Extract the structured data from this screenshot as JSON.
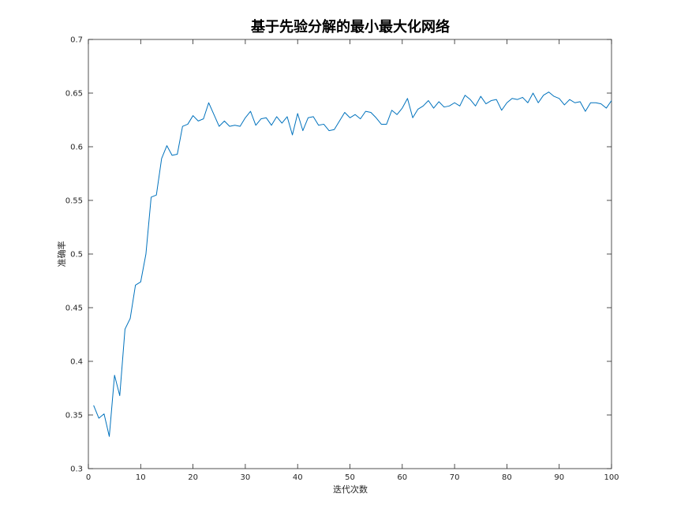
{
  "chart_data": {
    "type": "line",
    "title": "基于先验分解的最小最大化网络",
    "xlabel": "迭代次数",
    "ylabel": "准确率",
    "xlim": [
      0,
      100
    ],
    "ylim": [
      0.3,
      0.7
    ],
    "xticks": [
      0,
      10,
      20,
      30,
      40,
      50,
      60,
      70,
      80,
      90,
      100
    ],
    "yticks": [
      0.3,
      0.35,
      0.4,
      0.45,
      0.5,
      0.55,
      0.6,
      0.65,
      0.7
    ],
    "xtick_labels": [
      "0",
      "10",
      "20",
      "30",
      "40",
      "50",
      "60",
      "70",
      "80",
      "90",
      "100"
    ],
    "ytick_labels": [
      "0.3",
      "0.35",
      "0.4",
      "0.45",
      "0.5",
      "0.55",
      "0.6",
      "0.65",
      "0.7"
    ],
    "grid": false,
    "box": true,
    "line_color": "#0072BD",
    "axis_color": "#262626",
    "series": [
      {
        "x": [
          1,
          2,
          3,
          4,
          5,
          6,
          7,
          8,
          9,
          10,
          11,
          12,
          13,
          14,
          15,
          16,
          17,
          18,
          19,
          20,
          21,
          22,
          23,
          24,
          25,
          26,
          27,
          28,
          29,
          30,
          31,
          32,
          33,
          34,
          35,
          36,
          37,
          38,
          39,
          40,
          41,
          42,
          43,
          44,
          45,
          46,
          47,
          48,
          49,
          50,
          51,
          52,
          53,
          54,
          55,
          56,
          57,
          58,
          59,
          60,
          61,
          62,
          63,
          64,
          65,
          66,
          67,
          68,
          69,
          70,
          71,
          72,
          73,
          74,
          75,
          76,
          77,
          78,
          79,
          80,
          81,
          82,
          83,
          84,
          85,
          86,
          87,
          88,
          89,
          90,
          91,
          92,
          93,
          94,
          95,
          96,
          97,
          98,
          99,
          100
        ],
        "values": [
          0.359,
          0.347,
          0.351,
          0.33,
          0.387,
          0.368,
          0.43,
          0.44,
          0.471,
          0.474,
          0.5,
          0.553,
          0.555,
          0.589,
          0.601,
          0.592,
          0.593,
          0.619,
          0.621,
          0.629,
          0.624,
          0.626,
          0.641,
          0.63,
          0.619,
          0.624,
          0.619,
          0.62,
          0.619,
          0.627,
          0.633,
          0.62,
          0.626,
          0.627,
          0.62,
          0.628,
          0.622,
          0.628,
          0.611,
          0.631,
          0.615,
          0.627,
          0.628,
          0.62,
          0.621,
          0.615,
          0.616,
          0.624,
          0.632,
          0.627,
          0.63,
          0.626,
          0.633,
          0.632,
          0.627,
          0.621,
          0.621,
          0.634,
          0.63,
          0.636,
          0.645,
          0.627,
          0.635,
          0.638,
          0.643,
          0.636,
          0.642,
          0.637,
          0.638,
          0.641,
          0.638,
          0.648,
          0.644,
          0.638,
          0.647,
          0.64,
          0.643,
          0.644,
          0.634,
          0.641,
          0.645,
          0.644,
          0.646,
          0.641,
          0.65,
          0.641,
          0.648,
          0.651,
          0.647,
          0.645,
          0.639,
          0.644,
          0.641,
          0.642,
          0.633,
          0.641,
          0.641,
          0.64,
          0.636,
          0.643
        ]
      }
    ]
  }
}
